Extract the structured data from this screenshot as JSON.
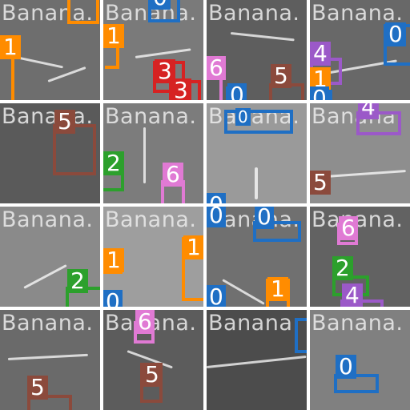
{
  "watermark": "Banana.",
  "colors": {
    "orange": "#ff8c00",
    "blue": "#1f6fc4",
    "red": "#d62222",
    "pink": "#e07ad4",
    "brown": "#8b4a3c",
    "purple": "#9b59c8",
    "green": "#2ca02c"
  },
  "tiles": [
    {
      "labels": [
        "1"
      ]
    },
    {
      "labels": [
        "1",
        "3",
        "3",
        "0"
      ]
    },
    {
      "labels": [
        "6",
        "5",
        "0"
      ]
    },
    {
      "labels": [
        "4",
        "1",
        "0",
        "0"
      ]
    },
    {
      "labels": [
        "5"
      ]
    },
    {
      "labels": [
        "2",
        "6"
      ]
    },
    {
      "labels": [
        "0",
        "0"
      ]
    },
    {
      "labels": [
        "4",
        "5"
      ]
    },
    {
      "labels": [
        "2"
      ]
    },
    {
      "labels": [
        "1",
        "0",
        "1"
      ]
    },
    {
      "labels": [
        "0",
        "0",
        "0",
        "1"
      ]
    },
    {
      "labels": [
        "6",
        "2",
        "4"
      ]
    },
    {
      "labels": [
        "5"
      ]
    },
    {
      "labels": [
        "6",
        "5"
      ]
    },
    {
      "labels": []
    },
    {
      "labels": [
        "0"
      ]
    }
  ]
}
